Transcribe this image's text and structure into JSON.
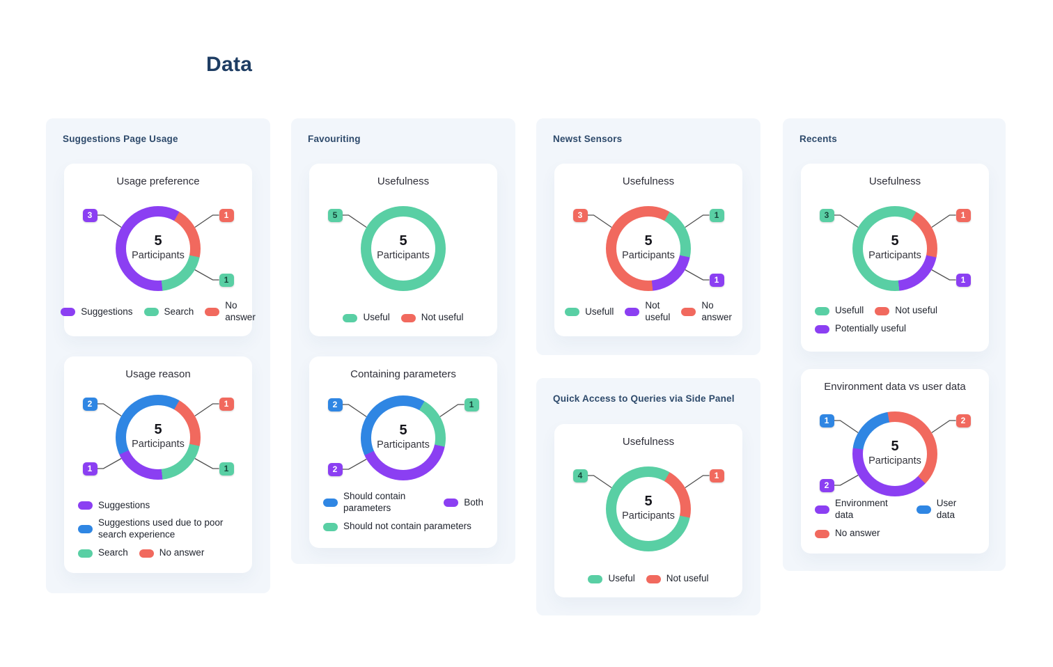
{
  "page": {
    "title": "Data"
  },
  "colors": {
    "purple": "#8B3FF2",
    "green": "#59CFA4",
    "red": "#F1695E",
    "blue": "#2F86E3",
    "header_text": "#2E4A6B",
    "panel_bg": "#F2F6FB",
    "card_bg": "#FFFFFF",
    "title_text": "#1E3D63"
  },
  "panels": [
    {
      "header": "Suggestions Page Usage",
      "charts": [
        0,
        1
      ]
    },
    {
      "header": "Favouriting",
      "charts": [
        2,
        3
      ]
    },
    {
      "header": "Newst Sensors",
      "charts": [
        4
      ]
    },
    {
      "header": "Quick Access to Queries via Side Panel",
      "charts": [
        5
      ]
    },
    {
      "header": "Recents",
      "charts": [
        6,
        7
      ]
    }
  ],
  "chart_data": [
    {
      "type": "donut",
      "title": "Usage preference",
      "center_value": "5",
      "center_label": "Participants",
      "start_angle": 30,
      "arcs": [
        {
          "label": "No answer",
          "color": "red",
          "value": 1,
          "deg": 72
        },
        {
          "label": "Search",
          "color": "green",
          "value": 1,
          "deg": 72
        },
        {
          "label": "Suggestions",
          "color": "purple",
          "value": 3,
          "deg": 216
        }
      ],
      "badges": [
        {
          "value": "3",
          "color": "purple",
          "pos": "left-top"
        },
        {
          "value": "1",
          "color": "red",
          "pos": "right-top"
        },
        {
          "value": "1",
          "color": "green",
          "pos": "right-bottom"
        }
      ],
      "legend": {
        "align": "center",
        "rows": [
          [
            {
              "label": "Suggestions",
              "color": "purple"
            },
            {
              "label": "Search",
              "color": "green"
            },
            {
              "label": "No answer",
              "color": "red"
            }
          ]
        ]
      }
    },
    {
      "type": "donut",
      "title": "Usage reason",
      "center_value": "5",
      "center_label": "Participants",
      "start_angle": 30,
      "arcs": [
        {
          "label": "No answer",
          "color": "red",
          "value": 1,
          "deg": 72
        },
        {
          "label": "Search",
          "color": "green",
          "value": 1,
          "deg": 72
        },
        {
          "label": "Suggestions",
          "color": "purple",
          "value": 1,
          "deg": 72
        },
        {
          "label": "Suggestions used due to poor search experience",
          "color": "blue",
          "value": 2,
          "deg": 144
        }
      ],
      "badges": [
        {
          "value": "2",
          "color": "blue",
          "pos": "left-top"
        },
        {
          "value": "1",
          "color": "red",
          "pos": "right-top"
        },
        {
          "value": "1",
          "color": "green",
          "pos": "right-bottom"
        },
        {
          "value": "1",
          "color": "purple",
          "pos": "left-bottom"
        }
      ],
      "legend": {
        "align": "left",
        "rows": [
          [
            {
              "label": "Suggestions",
              "color": "purple"
            }
          ],
          [
            {
              "label": "Suggestions used due to poor search experience",
              "color": "blue"
            }
          ],
          [
            {
              "label": "Search",
              "color": "green"
            },
            {
              "label": "No answer",
              "color": "red"
            }
          ]
        ]
      }
    },
    {
      "type": "donut",
      "title": "Usefulness",
      "center_value": "5",
      "center_label": "Participants",
      "start_angle": 0,
      "arcs": [
        {
          "label": "Useful",
          "color": "green",
          "value": 5,
          "deg": 360
        }
      ],
      "badges": [
        {
          "value": "5",
          "color": "green",
          "pos": "left-top"
        }
      ],
      "legend": {
        "align": "center",
        "rows": [
          [
            {
              "label": "Useful",
              "color": "green"
            },
            {
              "label": "Not useful",
              "color": "red"
            }
          ]
        ]
      }
    },
    {
      "type": "donut",
      "title": "Containing parameters",
      "center_value": "5",
      "center_label": "Participants",
      "start_angle": 30,
      "arcs": [
        {
          "label": "Should not contain parameters",
          "color": "green",
          "value": 1,
          "deg": 72
        },
        {
          "label": "Both",
          "color": "purple",
          "value": 2,
          "deg": 144
        },
        {
          "label": "Should contain parameters",
          "color": "blue",
          "value": 2,
          "deg": 144
        }
      ],
      "badges": [
        {
          "value": "2",
          "color": "blue",
          "pos": "left-top"
        },
        {
          "value": "1",
          "color": "green",
          "pos": "right-top"
        },
        {
          "value": "2",
          "color": "purple",
          "pos": "left-bottom"
        }
      ],
      "legend": {
        "align": "left",
        "rows": [
          [
            {
              "label": "Should contain parameters",
              "color": "blue"
            },
            {
              "label": "Both",
              "color": "purple"
            }
          ],
          [
            {
              "label": "Should not contain parameters",
              "color": "green"
            }
          ]
        ]
      }
    },
    {
      "type": "donut",
      "title": "Usefulness",
      "center_value": "5",
      "center_label": "Participants",
      "start_angle": 30,
      "arcs": [
        {
          "label": "Usefull",
          "color": "green",
          "value": 1,
          "deg": 72
        },
        {
          "label": "Not useful",
          "color": "purple",
          "value": 1,
          "deg": 72
        },
        {
          "label": "No answer",
          "color": "red",
          "value": 3,
          "deg": 216
        }
      ],
      "badges": [
        {
          "value": "3",
          "color": "red",
          "pos": "left-top"
        },
        {
          "value": "1",
          "color": "green",
          "pos": "right-top"
        },
        {
          "value": "1",
          "color": "purple",
          "pos": "right-bottom"
        }
      ],
      "legend": {
        "align": "center",
        "rows": [
          [
            {
              "label": "Usefull",
              "color": "green"
            },
            {
              "label": "Not useful",
              "color": "purple"
            },
            {
              "label": "No answer",
              "color": "red"
            }
          ]
        ]
      }
    },
    {
      "type": "donut",
      "title": "Usefulness",
      "center_value": "5",
      "center_label": "Participants",
      "start_angle": 30,
      "arcs": [
        {
          "label": "Not useful",
          "color": "red",
          "value": 1,
          "deg": 72
        },
        {
          "label": "Useful",
          "color": "green",
          "value": 4,
          "deg": 288
        }
      ],
      "badges": [
        {
          "value": "4",
          "color": "green",
          "pos": "left-top"
        },
        {
          "value": "1",
          "color": "red",
          "pos": "right-top"
        }
      ],
      "legend": {
        "align": "center",
        "rows": [
          [
            {
              "label": "Useful",
              "color": "green"
            },
            {
              "label": "Not useful",
              "color": "red"
            }
          ]
        ]
      }
    },
    {
      "type": "donut",
      "title": "Usefulness",
      "center_value": "5",
      "center_label": "Participants",
      "start_angle": 30,
      "arcs": [
        {
          "label": "Not useful",
          "color": "red",
          "value": 1,
          "deg": 72
        },
        {
          "label": "Potentially useful",
          "color": "purple",
          "value": 1,
          "deg": 72
        },
        {
          "label": "Usefull",
          "color": "green",
          "value": 3,
          "deg": 216
        }
      ],
      "badges": [
        {
          "value": "3",
          "color": "green",
          "pos": "left-top"
        },
        {
          "value": "1",
          "color": "red",
          "pos": "right-top"
        },
        {
          "value": "1",
          "color": "purple",
          "pos": "right-bottom"
        }
      ],
      "legend": {
        "align": "left",
        "rows": [
          [
            {
              "label": "Usefull",
              "color": "green"
            },
            {
              "label": "Not useful",
              "color": "red"
            }
          ],
          [
            {
              "label": "Potentially useful",
              "color": "purple"
            }
          ]
        ]
      }
    },
    {
      "type": "donut",
      "title": "Environment data vs user data",
      "center_value": "5",
      "center_label": "Participants",
      "start_angle": 350,
      "arcs": [
        {
          "label": "No answer",
          "color": "red",
          "value": 2,
          "deg": 144
        },
        {
          "label": "Environment data",
          "color": "purple",
          "value": 2,
          "deg": 144
        },
        {
          "label": "User data",
          "color": "blue",
          "value": 1,
          "deg": 72
        }
      ],
      "badges": [
        {
          "value": "1",
          "color": "blue",
          "pos": "left-top"
        },
        {
          "value": "2",
          "color": "red",
          "pos": "right-top"
        },
        {
          "value": "2",
          "color": "purple",
          "pos": "left-bottom"
        }
      ],
      "legend": {
        "align": "left",
        "rows": [
          [
            {
              "label": "Environment data",
              "color": "purple"
            },
            {
              "label": "User data",
              "color": "blue"
            }
          ],
          [
            {
              "label": "No answer",
              "color": "red"
            }
          ]
        ]
      }
    }
  ]
}
